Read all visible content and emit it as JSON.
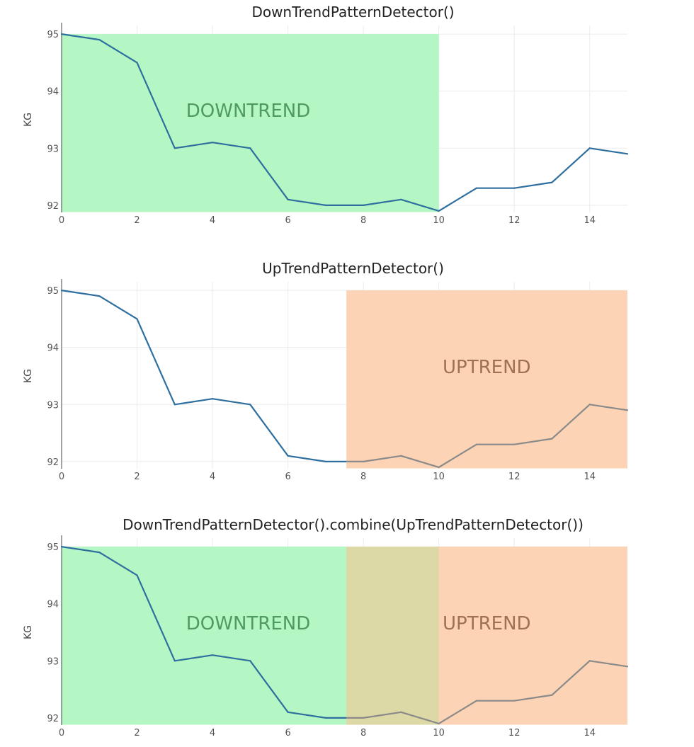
{
  "colors": {
    "line_main": "#2f6f9f",
    "line_muted": "#8a8a8a",
    "downtrend_fill": "#b5f7c4",
    "uptrend_fill": "#fcd3b4",
    "overlap_fill": "#ddd9a6",
    "downtrend_text": "#4f9a62",
    "uptrend_text": "#a07055"
  },
  "chart_data": [
    {
      "type": "line",
      "title": "DownTrendPatternDetector()",
      "xlabel": "",
      "ylabel": "KG",
      "x": [
        0,
        1,
        2,
        3,
        4,
        5,
        6,
        7,
        8,
        9,
        10,
        11,
        12,
        13,
        14,
        15
      ],
      "series": [
        {
          "values": [
            95.0,
            94.9,
            94.5,
            93.0,
            93.1,
            93.0,
            92.1,
            92.0,
            92.0,
            92.1,
            91.9,
            92.3,
            92.3,
            92.4,
            93.0,
            92.9
          ]
        }
      ],
      "xlim": [
        0,
        15
      ],
      "ylim": [
        91.75,
        95.15
      ],
      "xticks": [
        0,
        2,
        4,
        6,
        8,
        10,
        12,
        14
      ],
      "yticks": [
        92,
        93,
        94,
        95
      ],
      "grid": true,
      "regions": [
        {
          "label": "DOWNTREND",
          "kind": "downtrend",
          "x0": 0,
          "x1": 10,
          "y0": 91.88,
          "y1": 95.0,
          "muted_line": false
        }
      ]
    },
    {
      "type": "line",
      "title": "UpTrendPatternDetector()",
      "xlabel": "",
      "ylabel": "KG",
      "x": [
        0,
        1,
        2,
        3,
        4,
        5,
        6,
        7,
        8,
        9,
        10,
        11,
        12,
        13,
        14,
        15
      ],
      "series": [
        {
          "values": [
            95.0,
            94.9,
            94.5,
            93.0,
            93.1,
            93.0,
            92.1,
            92.0,
            92.0,
            92.1,
            91.9,
            92.3,
            92.3,
            92.4,
            93.0,
            92.9
          ]
        }
      ],
      "xlim": [
        0,
        15
      ],
      "ylim": [
        91.75,
        95.15
      ],
      "xticks": [
        0,
        2,
        4,
        6,
        8,
        10,
        12,
        14
      ],
      "yticks": [
        92,
        93,
        94,
        95
      ],
      "grid": true,
      "regions": [
        {
          "label": "UPTREND",
          "kind": "uptrend",
          "x0": 7.55,
          "x1": 15,
          "y0": 91.88,
          "y1": 95.0,
          "muted_line": true
        }
      ]
    },
    {
      "type": "line",
      "title": "DownTrendPatternDetector().combine(UpTrendPatternDetector())",
      "xlabel": "",
      "ylabel": "KG",
      "x": [
        0,
        1,
        2,
        3,
        4,
        5,
        6,
        7,
        8,
        9,
        10,
        11,
        12,
        13,
        14,
        15
      ],
      "series": [
        {
          "values": [
            95.0,
            94.9,
            94.5,
            93.0,
            93.1,
            93.0,
            92.1,
            92.0,
            92.0,
            92.1,
            91.9,
            92.3,
            92.3,
            92.4,
            93.0,
            92.9
          ]
        }
      ],
      "xlim": [
        0,
        15
      ],
      "ylim": [
        91.75,
        95.15
      ],
      "xticks": [
        0,
        2,
        4,
        6,
        8,
        10,
        12,
        14
      ],
      "yticks": [
        92,
        93,
        94,
        95
      ],
      "grid": true,
      "regions": [
        {
          "label": "DOWNTREND",
          "kind": "downtrend",
          "x0": 0,
          "x1": 10,
          "y0": 91.88,
          "y1": 95.0,
          "muted_line": false
        },
        {
          "label": "UPTREND",
          "kind": "uptrend",
          "x0": 7.55,
          "x1": 15,
          "y0": 91.88,
          "y1": 95.0,
          "muted_line": true
        }
      ]
    }
  ]
}
